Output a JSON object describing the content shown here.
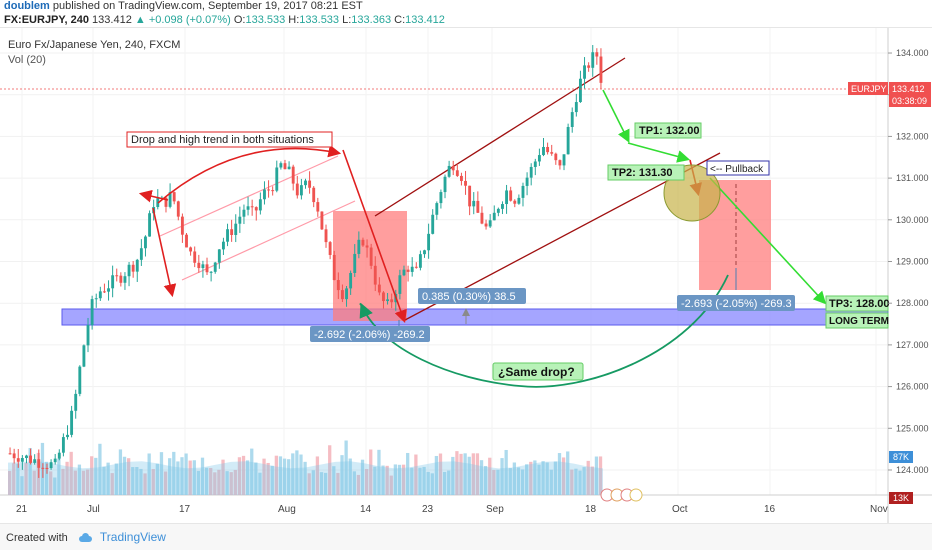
{
  "header": {
    "user": "doublem",
    "published_text": "published on TradingView.com, September 19, 2017 08:21 EST"
  },
  "symbol_bar": {
    "symbol": "FX:EURJPY, 240",
    "last": "133.412",
    "change": "▲ +0.098 (+0.07%)",
    "open_label": "O:",
    "open": "133.533",
    "high_label": "H:",
    "high": "133.533",
    "low_label": "L:",
    "low": "133.363",
    "close_label": "C:",
    "close": "133.412"
  },
  "footer": {
    "created_with": "Created with",
    "brand": "TradingView"
  },
  "colors": {
    "up": "#26a69a",
    "down": "#ef5350",
    "volume": "#9fd3ea",
    "volume_down": "#f3b2b8",
    "channel": "#a01010",
    "support_zone": "#7f7fff",
    "red_box": "#ff7d7d",
    "green_arrow": "#33dd33",
    "teal_arc": "#169a63",
    "price_tag": "#f05050"
  },
  "annotations": {
    "title_box": "Drop and high trend in both situations",
    "tp1": "TP1: 132.00",
    "tp2": "TP2: 131.30",
    "tp3": "TP3: 128.00",
    "long_term": "LONG TERM",
    "pullback": "<-- Pullback",
    "same_drop": "¿Same drop?",
    "measure_1": "-2.692 (-2.06%) -269.2",
    "measure_2": "0.385 (0.30%) 38.5",
    "measure_3": "-2.693 (-2.05%) -269.3"
  },
  "chart_data": {
    "type": "candlestick",
    "instrument": "Euro Fx/Japanese Yen, 240, FXCM",
    "volume_label": "Vol (20)",
    "price_tag_symbol": "EURJPY",
    "price_tag_value": "133.412",
    "countdown": "03:38:09",
    "volume_tags": [
      "87K",
      "13K"
    ],
    "ylim": [
      123.4,
      134.6
    ],
    "y_ticks": [
      "134.000",
      "133.000",
      "132.000",
      "131.000",
      "130.000",
      "129.000",
      "128.000",
      "127.000",
      "126.000",
      "125.000",
      "124.000"
    ],
    "x_ticks": [
      "21",
      "Jul",
      "17",
      "Aug",
      "14",
      "23",
      "Sep",
      "18",
      "Oct",
      "16",
      "Nov"
    ],
    "price_path": [
      [
        0,
        124.4
      ],
      [
        10,
        124.1
      ],
      [
        14,
        125.4
      ],
      [
        16,
        126.8
      ],
      [
        18,
        127.9
      ],
      [
        20,
        128.3
      ],
      [
        24,
        128.6
      ],
      [
        28,
        129.0
      ],
      [
        30,
        129.6
      ],
      [
        32,
        130.5
      ],
      [
        34,
        130.4
      ],
      [
        36,
        130.6
      ],
      [
        38,
        129.8
      ],
      [
        40,
        129.2
      ],
      [
        42,
        129.0
      ],
      [
        44,
        128.6
      ],
      [
        46,
        129.3
      ],
      [
        48,
        129.6
      ],
      [
        50,
        129.9
      ],
      [
        52,
        130.3
      ],
      [
        54,
        130.1
      ],
      [
        56,
        130.6
      ],
      [
        58,
        130.8
      ],
      [
        60,
        131.3
      ],
      [
        62,
        131.1
      ],
      [
        64,
        130.6
      ],
      [
        66,
        130.9
      ],
      [
        68,
        130.4
      ],
      [
        70,
        129.4
      ],
      [
        72,
        128.6
      ],
      [
        74,
        128.2
      ],
      [
        76,
        128.9
      ],
      [
        78,
        129.6
      ],
      [
        80,
        129.0
      ],
      [
        82,
        128.1
      ],
      [
        84,
        127.9
      ],
      [
        86,
        128.5
      ],
      [
        88,
        128.9
      ],
      [
        90,
        128.7
      ],
      [
        92,
        129.4
      ],
      [
        94,
        130.2
      ],
      [
        96,
        130.9
      ],
      [
        98,
        131.4
      ],
      [
        100,
        131.1
      ],
      [
        102,
        130.4
      ],
      [
        104,
        130.1
      ],
      [
        106,
        129.7
      ],
      [
        108,
        130.3
      ],
      [
        110,
        130.7
      ],
      [
        112,
        130.5
      ],
      [
        114,
        130.9
      ],
      [
        116,
        131.3
      ],
      [
        118,
        131.8
      ],
      [
        120,
        131.5
      ],
      [
        122,
        131.2
      ],
      [
        124,
        132.3
      ],
      [
        126,
        133.2
      ],
      [
        128,
        133.7
      ],
      [
        130,
        134.0
      ],
      [
        131,
        133.4
      ]
    ],
    "volume_levels": [
      0.35,
      0.45,
      0.5,
      0.4,
      0.6,
      0.55,
      0.45,
      0.5,
      0.7,
      0.55,
      0.5,
      0.4,
      0.45,
      0.6,
      0.65,
      0.5,
      0.55,
      0.45,
      0.5,
      0.4,
      0.6,
      0.55,
      0.7,
      0.5,
      0.45,
      0.5,
      0.55,
      0.6,
      0.5,
      0.45,
      0.55,
      0.5,
      0.45,
      0.4,
      0.5,
      0.6,
      0.55,
      0.5,
      0.45,
      0.5,
      0.55,
      0.6,
      0.5,
      0.55,
      0.5,
      0.45,
      0.5,
      0.6,
      0.55,
      0.5,
      0.45,
      0.5,
      0.55,
      0.5,
      0.45,
      0.5,
      0.55,
      0.6,
      0.5,
      0.55,
      0.5,
      0.45,
      0.55,
      0.5,
      0.6,
      0.55,
      0.5,
      0.45,
      0.5,
      0.55,
      0.6,
      0.5,
      0.45,
      0.5
    ]
  }
}
